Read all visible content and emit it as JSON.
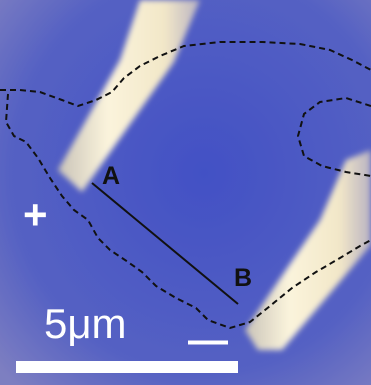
{
  "image": {
    "description_kind": "optical micrograph",
    "background_color": "#3d4fc6",
    "electrode_color": "#f4ecd2",
    "outline_style": "dashed black",
    "line_color": "#111111"
  },
  "labels": {
    "point_a": "A",
    "point_b": "B",
    "positive": "+",
    "negative": "—",
    "scale_bar": "5μm"
  }
}
